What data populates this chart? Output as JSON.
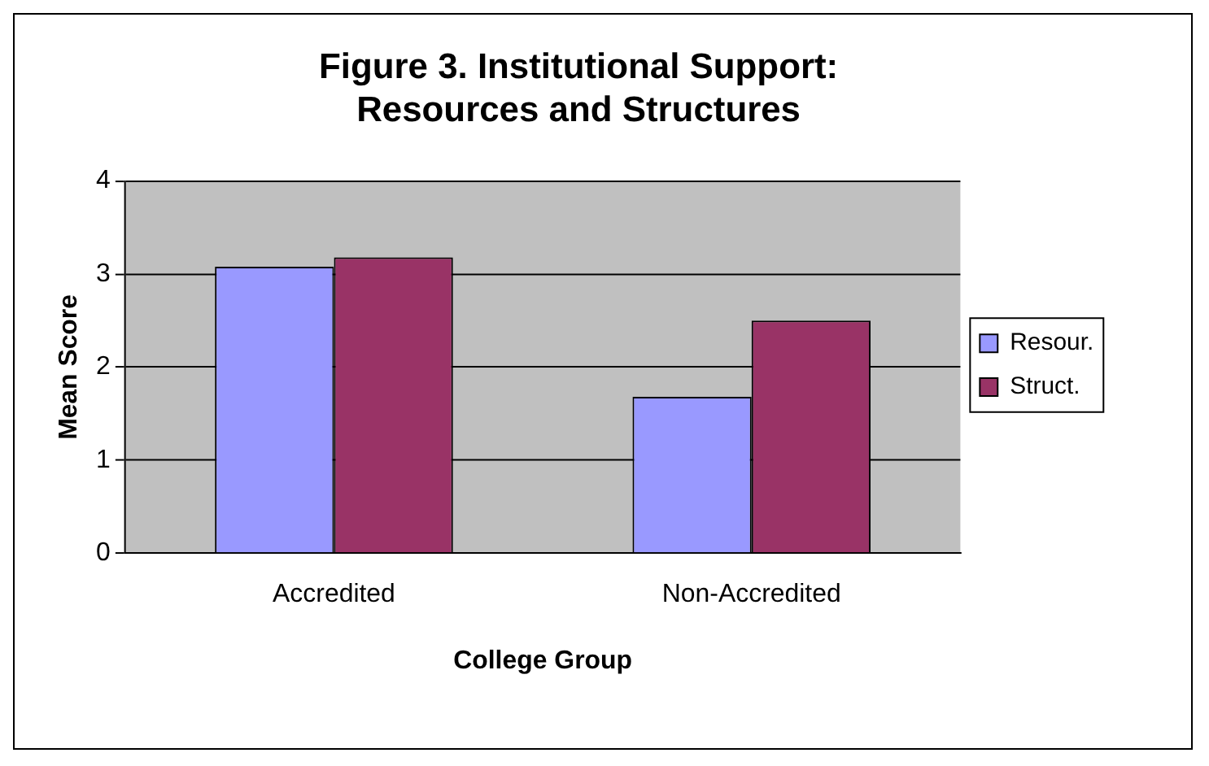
{
  "chart_data": {
    "type": "bar",
    "title": "Figure 3. Institutional Support: Resources and Structures",
    "xlabel": "College Group",
    "ylabel": "Mean Score",
    "categories": [
      "Accredited",
      "Non-Accredited"
    ],
    "series": [
      {
        "name": "Resour.",
        "color": "#9999ff",
        "values": [
          3.08,
          1.68
        ]
      },
      {
        "name": "Struct.",
        "color": "#993366",
        "values": [
          3.18,
          2.5
        ]
      }
    ],
    "ylim": [
      0,
      4
    ],
    "yticks": [
      0,
      1,
      2,
      3,
      4
    ],
    "grid": "y",
    "legend": "right"
  }
}
